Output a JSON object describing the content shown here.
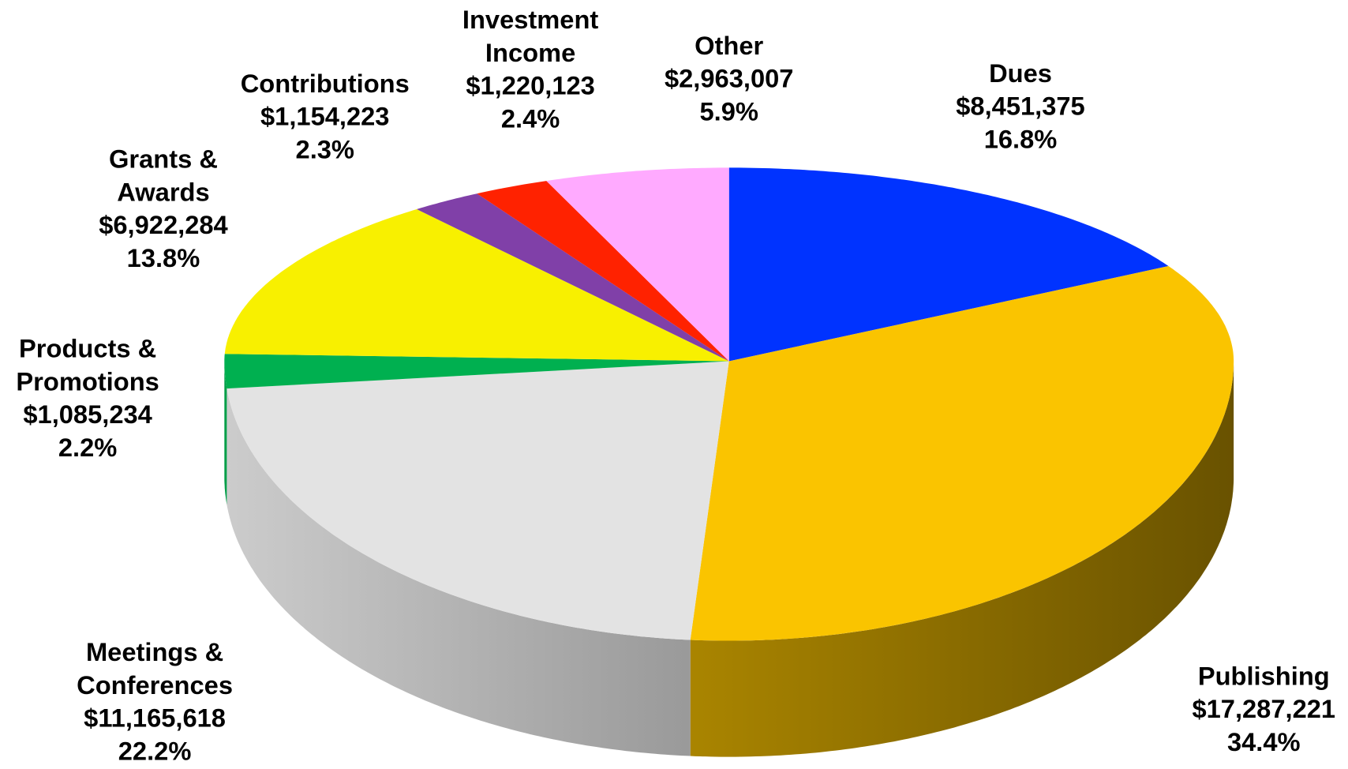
{
  "chart_data": {
    "type": "pie3d",
    "categories": [
      "Dues",
      "Publishing",
      "Meetings & Conferences",
      "Products & Promotions",
      "Grants & Awards",
      "Contributions",
      "Investment Income",
      "Other"
    ],
    "values": [
      8451375,
      17287221,
      11165618,
      1085234,
      6922284,
      1154223,
      1220123,
      2963007
    ],
    "value_labels": [
      "$8,451,375",
      "$17,287,221",
      "$11,165,618",
      "$1,085,234",
      "$6,922,284",
      "$1,154,223",
      "$1,220,123",
      "$2,963,007"
    ],
    "percents": [
      16.8,
      34.4,
      22.2,
      2.2,
      13.8,
      2.3,
      2.4,
      5.9
    ],
    "percent_labels": [
      "16.8%",
      "34.4%",
      "22.2%",
      "2.2%",
      "13.8%",
      "2.3%",
      "2.4%",
      "5.9%"
    ],
    "colors": [
      "#0033ff",
      "#fac400",
      "#e3e3e3",
      "#00b050",
      "#f8f000",
      "#8040a8",
      "#ff2200",
      "#ffaaff"
    ]
  }
}
